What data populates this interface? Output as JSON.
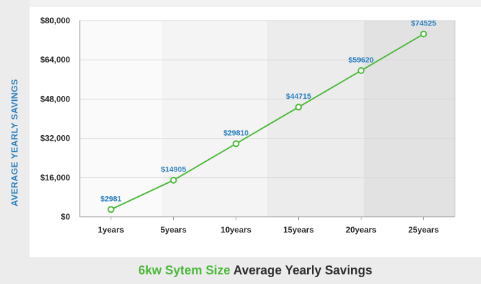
{
  "chart_data": {
    "type": "line",
    "title_accent": "6kw Sytem Size",
    "title_rest": "Average Yearly Savings",
    "ylabel": "AVERAGE YEARLY SAVINGS",
    "xlabel": "",
    "categories": [
      "1years",
      "5years",
      "10years",
      "15years",
      "20years",
      "25years"
    ],
    "series": [
      {
        "values": [
          2981,
          14905,
          29810,
          44715,
          59620,
          74525
        ]
      }
    ],
    "data_labels": [
      "$2981",
      "$14905",
      "$29810",
      "$44715",
      "$59620",
      "$74525"
    ],
    "ylim": [
      0,
      80000
    ],
    "yticks": [
      0,
      16000,
      32000,
      48000,
      64000,
      80000
    ],
    "ytick_labels": [
      "$0",
      "$16,000",
      "$32,000",
      "$48,000",
      "$64,000",
      "$80,000"
    ],
    "grid": true,
    "colors": {
      "line": "#4cba3a",
      "marker_fill": "#ffffff",
      "data_label": "#2a7fc0",
      "ylabel": "#2a7fc0",
      "title_accent": "#4cba3a",
      "title_rest": "#2e2e2e",
      "bands": [
        "#fafafa",
        "#f4f4f4",
        "#f4f4f4",
        "#ececec",
        "#e2e2e2"
      ]
    }
  }
}
